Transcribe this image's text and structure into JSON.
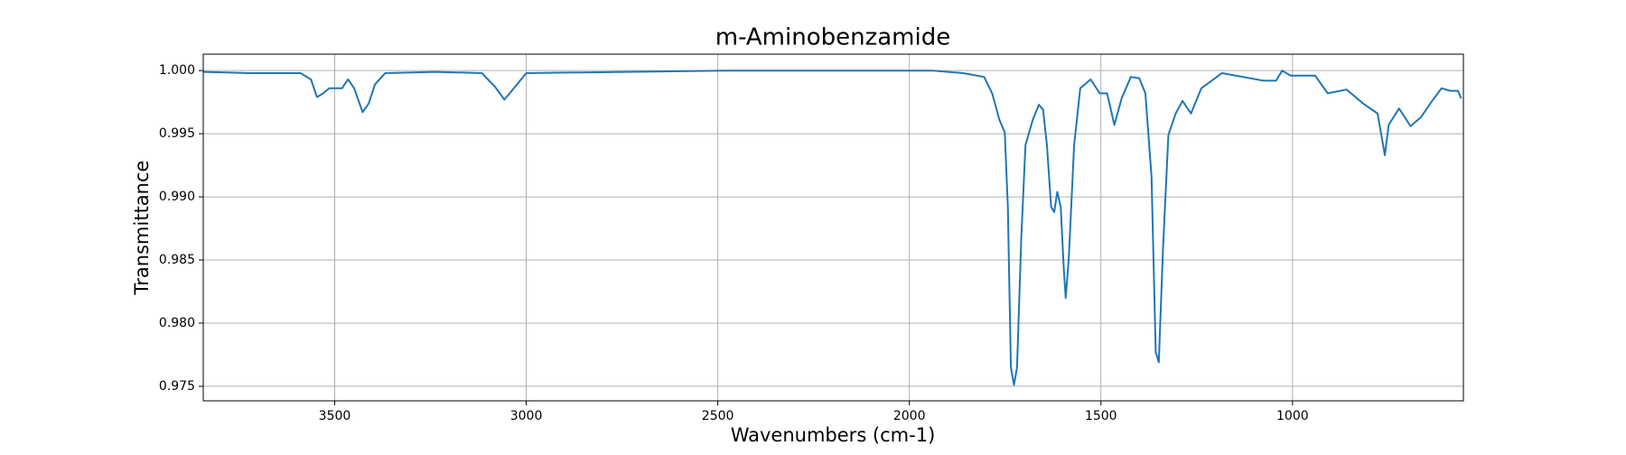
{
  "chart_data": {
    "type": "line",
    "title": "m-Aminobenzamide",
    "xlabel": "Wavenumbers (cm-1)",
    "ylabel": "Transmittance",
    "x": [
      3843,
      3724,
      3616,
      3589,
      3562,
      3546,
      3530,
      3514,
      3481,
      3465,
      3449,
      3427,
      3411,
      3395,
      3368,
      3238,
      3116,
      3081,
      3057,
      3035,
      3000,
      2481,
      1941,
      1860,
      1805,
      1784,
      1765,
      1751,
      1743,
      1735,
      1727,
      1719,
      1708,
      1697,
      1678,
      1662,
      1651,
      1641,
      1630,
      1622,
      1614,
      1605,
      1597,
      1592,
      1584,
      1570,
      1554,
      1527,
      1503,
      1484,
      1465,
      1446,
      1422,
      1400,
      1384,
      1368,
      1357,
      1349,
      1338,
      1324,
      1305,
      1287,
      1265,
      1238,
      1184,
      1076,
      1043,
      1027,
      1005,
      941,
      908,
      859,
      816,
      778,
      759,
      749,
      722,
      692,
      665,
      638,
      611,
      589,
      568,
      560
    ],
    "series": [
      {
        "name": "m-Aminobenzamide",
        "color": "#1f77b4",
        "values": [
          0.9999,
          0.9998,
          0.9998,
          0.9998,
          0.9993,
          0.9979,
          0.9982,
          0.9986,
          0.9986,
          0.9993,
          0.9986,
          0.9967,
          0.9974,
          0.9989,
          0.9998,
          0.9999,
          0.9998,
          0.9987,
          0.9977,
          0.9985,
          0.9998,
          1.0,
          1.0,
          0.9998,
          0.9995,
          0.9982,
          0.9961,
          0.9951,
          0.9892,
          0.9765,
          0.9751,
          0.9765,
          0.9867,
          0.9941,
          0.9961,
          0.9973,
          0.9969,
          0.9941,
          0.9892,
          0.9888,
          0.9904,
          0.9892,
          0.9843,
          0.982,
          0.9851,
          0.9941,
          0.9986,
          0.9993,
          0.9982,
          0.9982,
          0.9957,
          0.9978,
          0.9995,
          0.9994,
          0.9982,
          0.9916,
          0.9777,
          0.9769,
          0.9859,
          0.9949,
          0.9966,
          0.9976,
          0.9966,
          0.9986,
          0.9998,
          0.9992,
          0.9992,
          1.0,
          0.9996,
          0.9996,
          0.9982,
          0.9985,
          0.9974,
          0.9966,
          0.9933,
          0.9957,
          0.997,
          0.9956,
          0.9963,
          0.9975,
          0.9986,
          0.9984,
          0.9984,
          0.9978
        ]
      }
    ],
    "xlim": [
      3843,
      554
    ],
    "xticks": [
      3500,
      3000,
      2500,
      2000,
      1500,
      1000
    ],
    "ylim": [
      0.97385,
      1.0013
    ],
    "yticks": [
      0.975,
      {
        "value": 0.98,
        "label": "0.980"
      },
      0.985,
      {
        "value": 0.99,
        "label": "0.990"
      },
      0.995,
      {
        "value": 1,
        "label": "1.000"
      }
    ],
    "grid": true
  }
}
